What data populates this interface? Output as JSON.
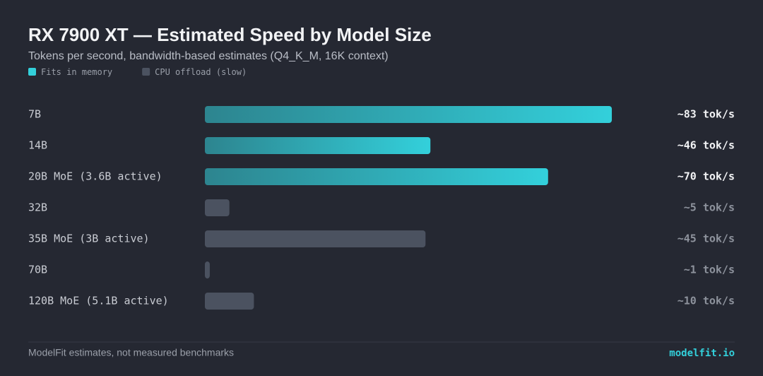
{
  "chart_data": {
    "type": "bar",
    "orientation": "horizontal",
    "title": "RX 7900 XT — Estimated Speed by Model Size",
    "subtitle": "Tokens per second, bandwidth-based estimates (Q4_K_M, 16K context)",
    "categories": [
      "7B",
      "14B",
      "20B MoE (3.6B active)",
      "32B",
      "35B MoE (3B active)",
      "70B",
      "120B MoE (5.1B active)"
    ],
    "series": [
      {
        "name": "Fits in memory",
        "color": "#33d0db",
        "values": [
          83,
          46,
          70,
          null,
          null,
          null,
          null
        ],
        "value_labels": [
          "~83 tok/s",
          "~46 tok/s",
          "~70 tok/s",
          null,
          null,
          null,
          null
        ]
      },
      {
        "name": "CPU offload (slow)",
        "color": "#4b5260",
        "values": [
          null,
          null,
          null,
          5,
          45,
          1,
          10
        ],
        "value_labels": [
          null,
          null,
          null,
          "~5 tok/s",
          "~45 tok/s",
          "~1 tok/s",
          "~10 tok/s"
        ]
      }
    ],
    "xlim": [
      0,
      100
    ],
    "footer_left": "ModelFit estimates, not measured benchmarks",
    "footer_right": "modelfit.io"
  }
}
